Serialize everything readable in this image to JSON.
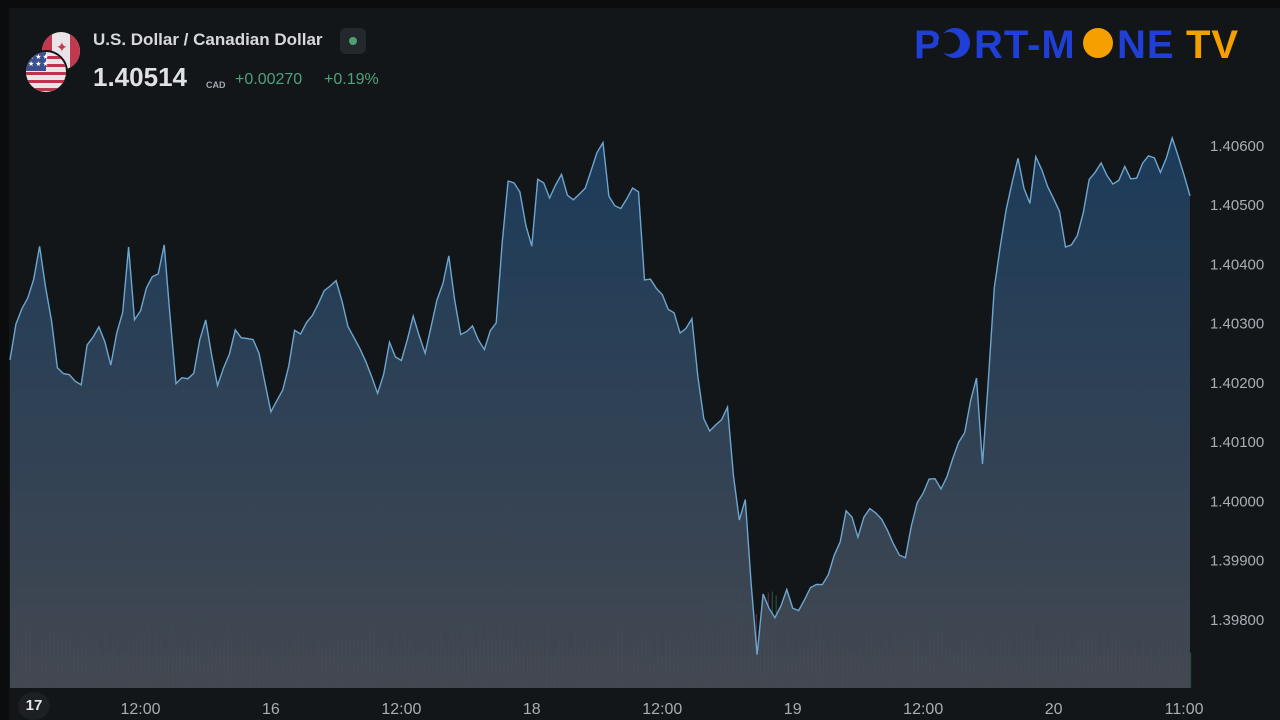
{
  "header": {
    "title": "U.S. Dollar / Canadian Dollar",
    "price": "1.40514",
    "currency": "CAD",
    "change": "+0.00270",
    "change_pct": "+0.19%",
    "status": "market-open",
    "status_color": "#4f9f70"
  },
  "brand": {
    "text": "PORT-MONE TV",
    "color_main": "#1f3fd6",
    "color_accent": "#f5a000"
  },
  "colors": {
    "background": "#131619",
    "line": "#6da6cf",
    "volume_up": "#3f8f72",
    "volume_down": "#9a4d63",
    "axis_text": "#a9adb4"
  },
  "chart_data": {
    "type": "area",
    "pair": "USD/CAD",
    "y_ticks": [
      "1.40600",
      "1.40500",
      "1.40400",
      "1.40300",
      "1.40200",
      "1.40100",
      "1.40000",
      "1.39900",
      "1.39800"
    ],
    "ylim": [
      1.3971,
      1.4067
    ],
    "x_ticks": [
      "12:00",
      "16",
      "12:00",
      "18",
      "12:00",
      "19",
      "12:00",
      "20",
      "11:00"
    ],
    "x_tick_index": [
      22,
      44,
      66,
      88,
      110,
      132,
      154,
      176,
      198
    ],
    "n_points": 200,
    "keypoints": [
      [
        0,
        1.4025
      ],
      [
        2,
        1.4033
      ],
      [
        4,
        1.4037
      ],
      [
        5,
        1.4043
      ],
      [
        7,
        1.403
      ],
      [
        8,
        1.4022
      ],
      [
        10,
        1.4021
      ],
      [
        12,
        1.4019
      ],
      [
        13,
        1.4027
      ],
      [
        15,
        1.4029
      ],
      [
        17,
        1.4024
      ],
      [
        19,
        1.4032
      ],
      [
        20,
        1.4042
      ],
      [
        21,
        1.403
      ],
      [
        23,
        1.4036
      ],
      [
        25,
        1.4038
      ],
      [
        26,
        1.4043
      ],
      [
        27,
        1.4031
      ],
      [
        28,
        1.4019
      ],
      [
        31,
        1.4022
      ],
      [
        33,
        1.4031
      ],
      [
        35,
        1.402
      ],
      [
        38,
        1.4028
      ],
      [
        42,
        1.4026
      ],
      [
        44,
        1.4015
      ],
      [
        46,
        1.4019
      ],
      [
        48,
        1.4028
      ],
      [
        52,
        1.4033
      ],
      [
        55,
        1.4038
      ],
      [
        57,
        1.403
      ],
      [
        60,
        1.4024
      ],
      [
        62,
        1.4018
      ],
      [
        64,
        1.4026
      ],
      [
        66,
        1.4023
      ],
      [
        68,
        1.4031
      ],
      [
        70,
        1.4025
      ],
      [
        72,
        1.4033
      ],
      [
        74,
        1.4041
      ],
      [
        76,
        1.4028
      ],
      [
        78,
        1.403
      ],
      [
        80,
        1.4025
      ],
      [
        82,
        1.4031
      ],
      [
        84,
        1.4055
      ],
      [
        86,
        1.4053
      ],
      [
        88,
        1.4042
      ],
      [
        89,
        1.4055
      ],
      [
        91,
        1.4052
      ],
      [
        93,
        1.4055
      ],
      [
        95,
        1.405
      ],
      [
        97,
        1.4052
      ],
      [
        99,
        1.4058
      ],
      [
        100,
        1.406
      ],
      [
        101,
        1.4052
      ],
      [
        103,
        1.405
      ],
      [
        105,
        1.4054
      ],
      [
        106,
        1.4052
      ],
      [
        107,
        1.4038
      ],
      [
        109,
        1.4036
      ],
      [
        111,
        1.4033
      ],
      [
        113,
        1.4029
      ],
      [
        115,
        1.403
      ],
      [
        117,
        1.4014
      ],
      [
        119,
        1.4012
      ],
      [
        121,
        1.4015
      ],
      [
        123,
        1.3996
      ],
      [
        124,
        1.4001
      ],
      [
        125,
        1.3985
      ],
      [
        126,
        1.3974
      ],
      [
        127,
        1.3984
      ],
      [
        129,
        1.3981
      ],
      [
        131,
        1.3985
      ],
      [
        133,
        1.3981
      ],
      [
        135,
        1.3985
      ],
      [
        137,
        1.3987
      ],
      [
        139,
        1.399
      ],
      [
        141,
        1.3998
      ],
      [
        143,
        1.3995
      ],
      [
        145,
        1.3998
      ],
      [
        147,
        1.3996
      ],
      [
        149,
        1.3993
      ],
      [
        151,
        1.399
      ],
      [
        153,
        1.4
      ],
      [
        155,
        1.4004
      ],
      [
        157,
        1.4002
      ],
      [
        159,
        1.4007
      ],
      [
        161,
        1.4012
      ],
      [
        163,
        1.4021
      ],
      [
        164,
        1.4007
      ],
      [
        166,
        1.4035
      ],
      [
        168,
        1.4049
      ],
      [
        170,
        1.4057
      ],
      [
        172,
        1.405
      ],
      [
        173,
        1.4059
      ],
      [
        175,
        1.4053
      ],
      [
        177,
        1.4048
      ],
      [
        178,
        1.4043
      ],
      [
        180,
        1.4045
      ],
      [
        182,
        1.4054
      ],
      [
        184,
        1.4057
      ],
      [
        186,
        1.4053
      ],
      [
        188,
        1.4056
      ],
      [
        190,
        1.4055
      ],
      [
        192,
        1.4059
      ],
      [
        194,
        1.4056
      ],
      [
        196,
        1.4061
      ],
      [
        198,
        1.4056
      ],
      [
        199,
        1.4051
      ]
    ],
    "grid": false,
    "volume_panel": true
  }
}
